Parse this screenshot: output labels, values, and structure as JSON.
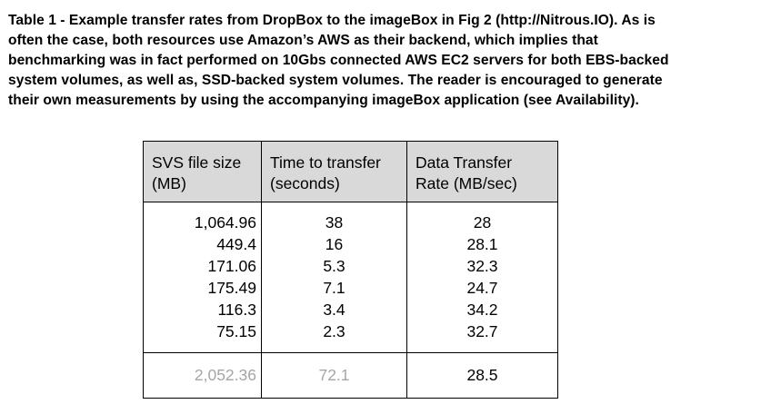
{
  "caption": {
    "lines": [
      "Table 1 - Example transfer rates from DropBox to the imageBox in Fig 2 (http://Nitrous.IO). As is",
      "often the case, both resources use Amazon’s AWS as their backend, which implies that",
      "benchmarking was in fact performed on 10Gbs connected AWS EC2 servers for both EBS-backed",
      "system volumes, as well as, SSD-backed system volumes. The reader is encouraged to generate",
      "their own measurements by using the accompanying imageBox application (see Availability)."
    ]
  },
  "table": {
    "headers": [
      [
        "SVS file size",
        "(MB)"
      ],
      [
        "Time to transfer",
        "(seconds)"
      ],
      [
        "Data Transfer",
        "Rate (MB/sec)"
      ]
    ],
    "columns": {
      "file_size": [
        "1,064.96",
        "449.4",
        "171.06",
        "175.49",
        "116.3",
        "75.15"
      ],
      "time": [
        "38",
        "16",
        "5.3",
        "7.1",
        "3.4",
        "2.3"
      ],
      "rate": [
        "28",
        "28.1",
        "32.3",
        "24.7",
        "34.2",
        "32.7"
      ]
    },
    "totals": {
      "file_size": "2,052.36",
      "time": "72.1",
      "rate": "28.5"
    },
    "colors": {
      "header_bg": "#d9d9d9",
      "border": "#000000",
      "muted_text": "#a6a6a6"
    }
  }
}
